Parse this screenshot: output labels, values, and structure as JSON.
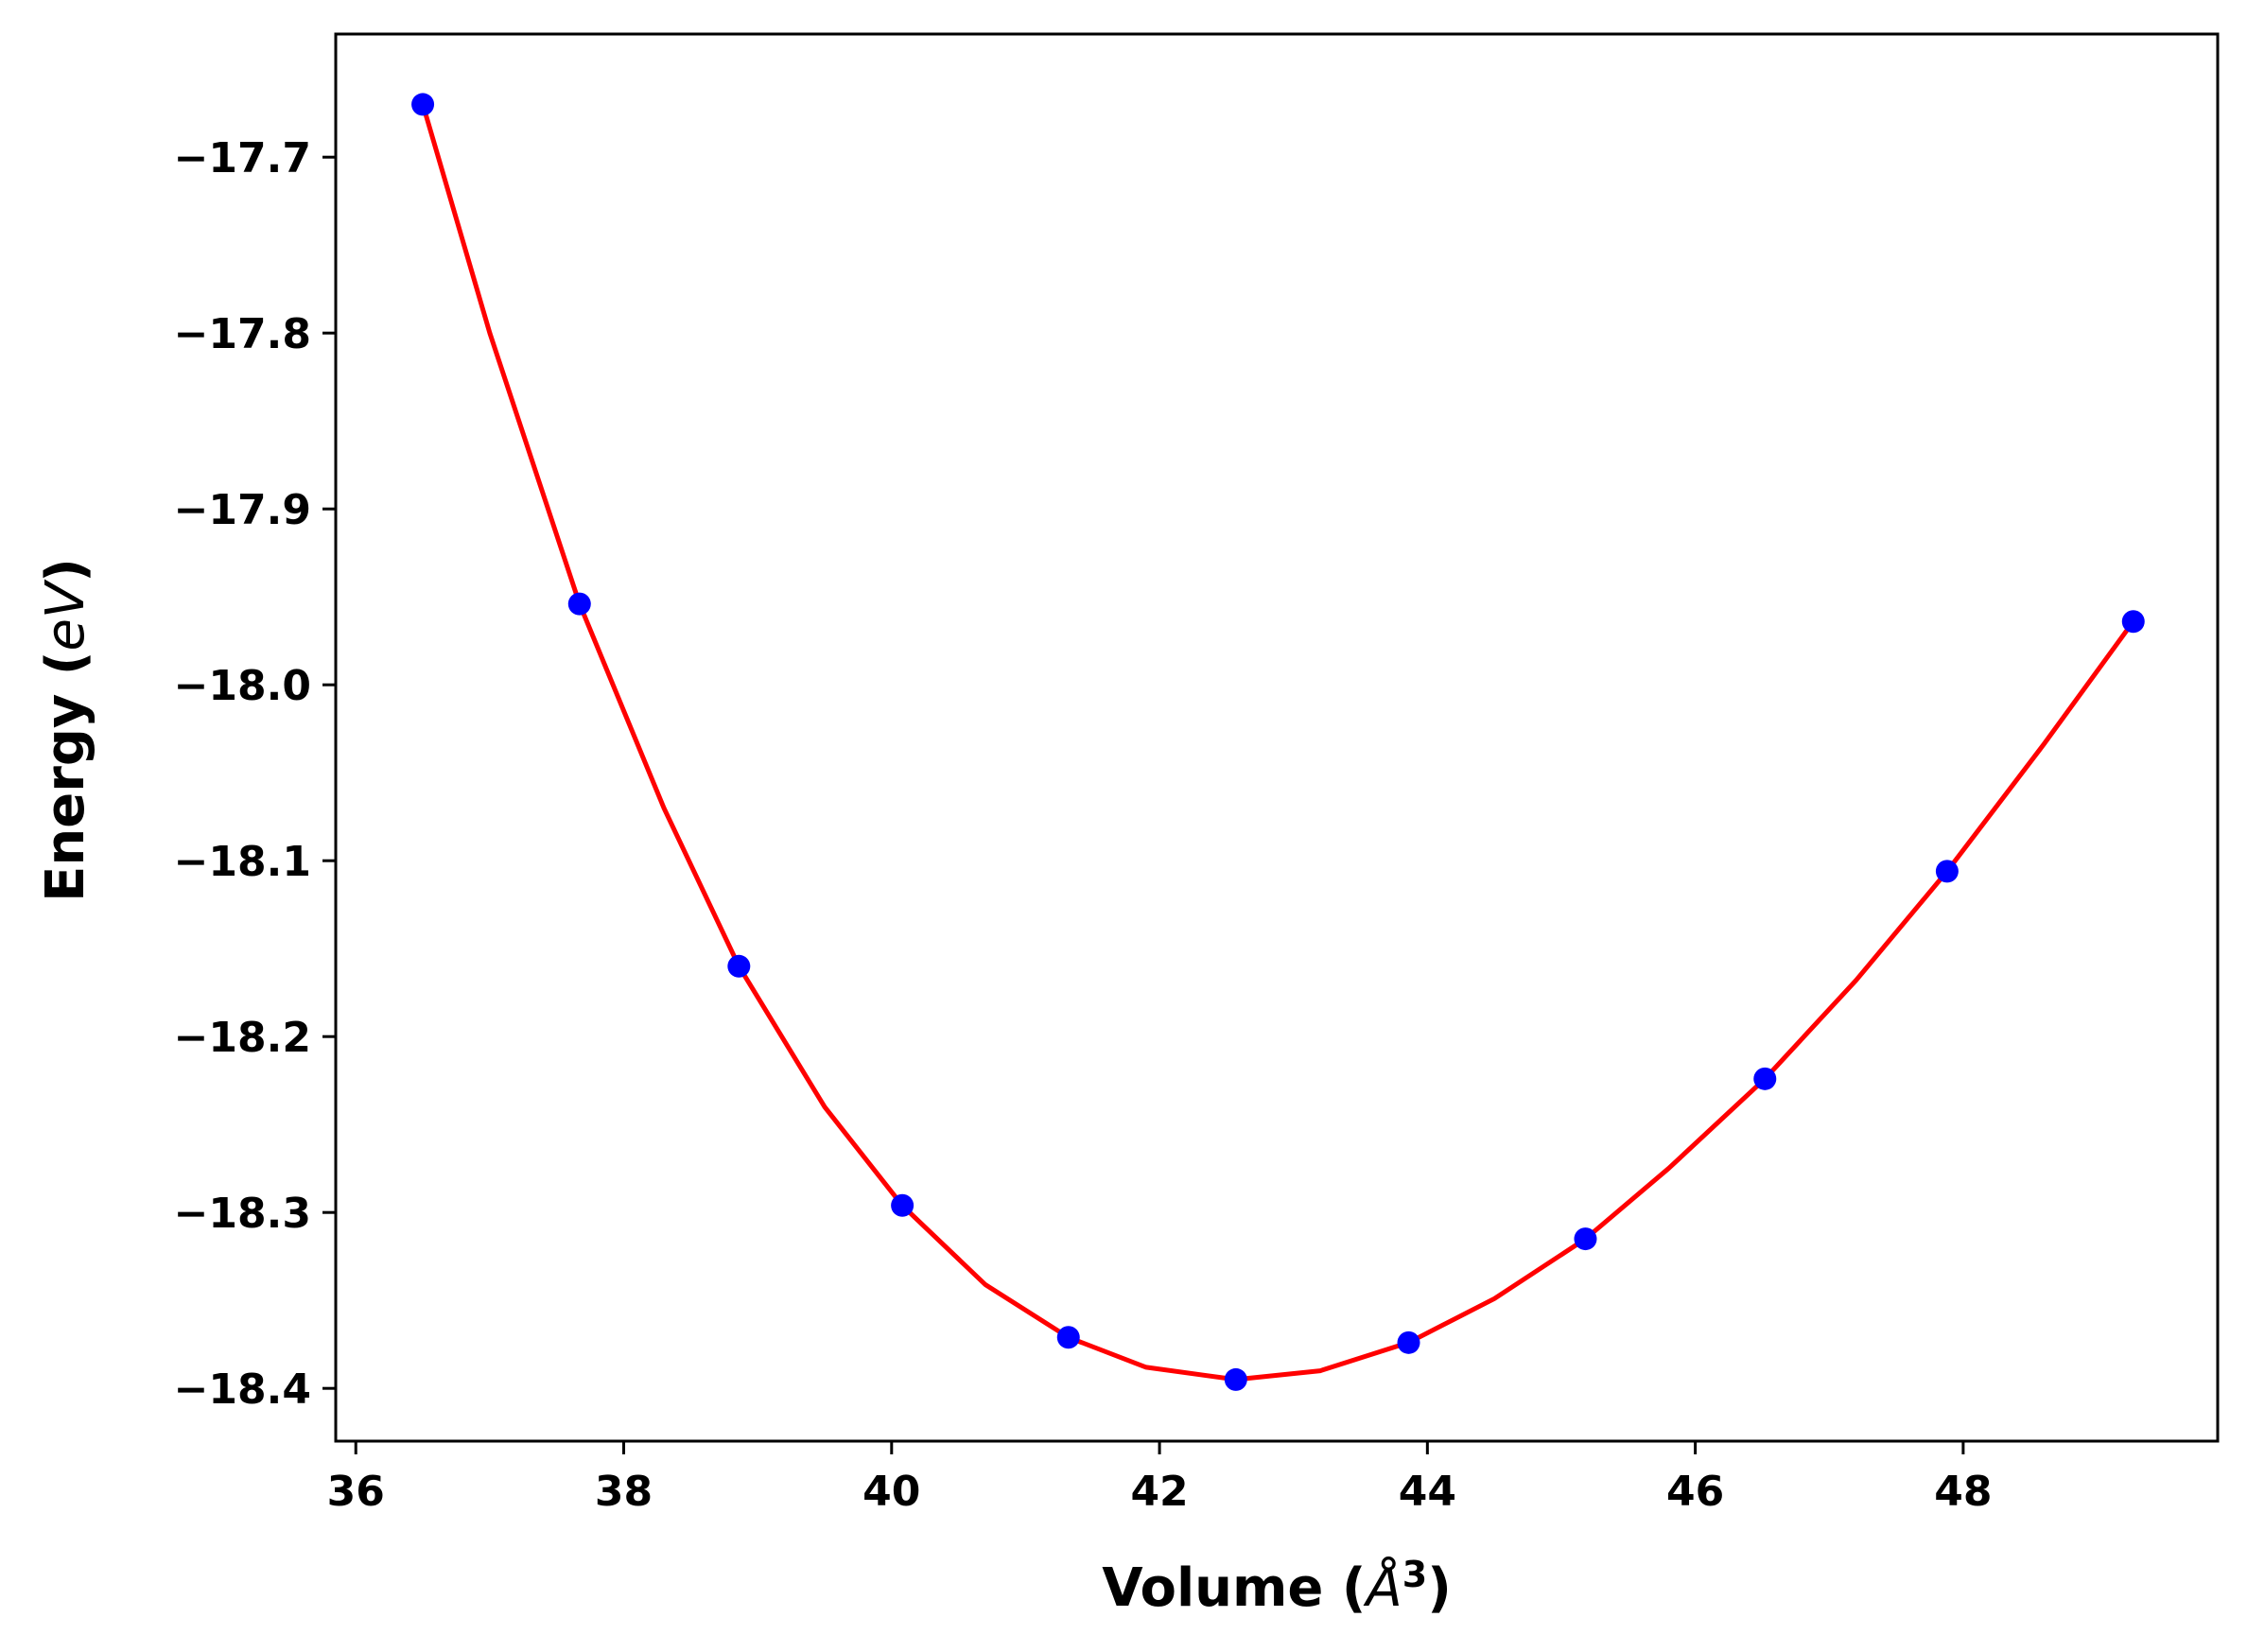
{
  "chart_data": {
    "type": "line",
    "title": "",
    "xlabel": "Volume (",
    "xlabel_unit": "Å",
    "xlabel_sup": "3",
    "xlabel_close": ")",
    "ylabel": "Energy (",
    "ylabel_unit": "eV",
    "ylabel_close": ")",
    "xlim": [
      35.85,
      49.9
    ],
    "ylim": [
      -18.43,
      -17.63
    ],
    "xticks": [
      36,
      38,
      40,
      42,
      44,
      46,
      48
    ],
    "xtick_labels": [
      "36",
      "38",
      "40",
      "42",
      "44",
      "46",
      "48"
    ],
    "yticks": [
      -17.7,
      -17.8,
      -17.9,
      -18.0,
      -18.1,
      -18.2,
      -18.3,
      -18.4
    ],
    "ytick_labels": [
      "−17.7",
      "−17.8",
      "−17.9",
      "−18.0",
      "−18.1",
      "−18.2",
      "−18.3",
      "−18.4"
    ],
    "grid": false,
    "series": [
      {
        "kind": "scatter",
        "color": "#0000ff",
        "x": [
          36.5,
          37.67,
          38.86,
          40.08,
          41.32,
          42.57,
          43.86,
          45.18,
          46.52,
          47.88,
          49.27
        ],
        "y": [
          -17.67,
          -17.954,
          -18.16,
          -18.296,
          -18.371,
          -18.395,
          -18.374,
          -18.315,
          -18.224,
          -18.106,
          -17.964
        ]
      },
      {
        "kind": "line",
        "color": "#ff0000",
        "x": [
          36.5,
          37.0,
          37.67,
          38.3,
          38.86,
          39.5,
          40.08,
          40.7,
          41.32,
          41.9,
          42.57,
          43.2,
          43.86,
          44.5,
          45.18,
          45.8,
          46.52,
          47.2,
          47.88,
          48.6,
          49.27
        ],
        "y": [
          -17.67,
          -17.8,
          -17.954,
          -18.07,
          -18.16,
          -18.24,
          -18.296,
          -18.341,
          -18.371,
          -18.388,
          -18.395,
          -18.39,
          -18.374,
          -18.349,
          -18.315,
          -18.275,
          -18.224,
          -18.168,
          -18.106,
          -18.034,
          -17.964
        ]
      }
    ]
  }
}
